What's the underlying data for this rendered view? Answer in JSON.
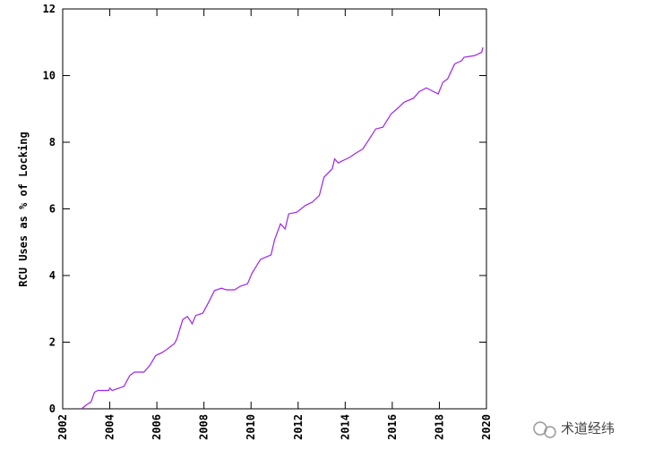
{
  "chart_data": {
    "type": "line",
    "ylabel": "RCU Uses as % of Locking",
    "x": [
      2002.8,
      2003.03,
      2003.2,
      2003.35,
      2003.5,
      2003.95,
      2004.0,
      2004.1,
      2004.6,
      2004.85,
      2005.05,
      2005.45,
      2005.7,
      2005.95,
      2006.2,
      2006.4,
      2006.75,
      2006.85,
      2007.1,
      2007.3,
      2007.5,
      2007.65,
      2007.95,
      2008.2,
      2008.45,
      2008.75,
      2008.95,
      2009.3,
      2009.55,
      2009.85,
      2010.05,
      2010.4,
      2010.85,
      2011.0,
      2011.25,
      2011.45,
      2011.6,
      2011.95,
      2012.3,
      2012.6,
      2012.9,
      2013.1,
      2013.45,
      2013.55,
      2013.7,
      2014.2,
      2014.45,
      2014.75,
      2015.1,
      2015.3,
      2015.6,
      2015.95,
      2016.2,
      2016.5,
      2016.9,
      2017.15,
      2017.45,
      2017.75,
      2017.95,
      2018.15,
      2018.35,
      2018.65,
      2018.95,
      2019.05,
      2019.5,
      2019.8,
      2019.85
    ],
    "values": [
      0,
      0.13,
      0.2,
      0.5,
      0.55,
      0.55,
      0.62,
      0.55,
      0.67,
      1.0,
      1.1,
      1.1,
      1.3,
      1.6,
      1.68,
      1.77,
      1.96,
      2.1,
      2.68,
      2.77,
      2.55,
      2.8,
      2.87,
      3.2,
      3.55,
      3.62,
      3.57,
      3.57,
      3.68,
      3.75,
      4.08,
      4.48,
      4.62,
      5.07,
      5.55,
      5.4,
      5.85,
      5.9,
      6.1,
      6.2,
      6.4,
      6.95,
      7.2,
      7.5,
      7.38,
      7.55,
      7.67,
      7.8,
      8.18,
      8.4,
      8.45,
      8.85,
      9.0,
      9.2,
      9.32,
      9.52,
      9.63,
      9.52,
      9.45,
      9.8,
      9.9,
      10.35,
      10.45,
      10.55,
      10.6,
      10.7,
      10.85
    ],
    "color": "#a020f0",
    "xlim": [
      2002,
      2020
    ],
    "xticks": [
      2002,
      2004,
      2006,
      2008,
      2010,
      2012,
      2014,
      2016,
      2018,
      2020
    ],
    "ylim": [
      0,
      12
    ],
    "yticks": [
      0,
      2,
      4,
      6,
      8,
      10,
      12
    ],
    "grid": false
  },
  "watermark": "术道经纬"
}
